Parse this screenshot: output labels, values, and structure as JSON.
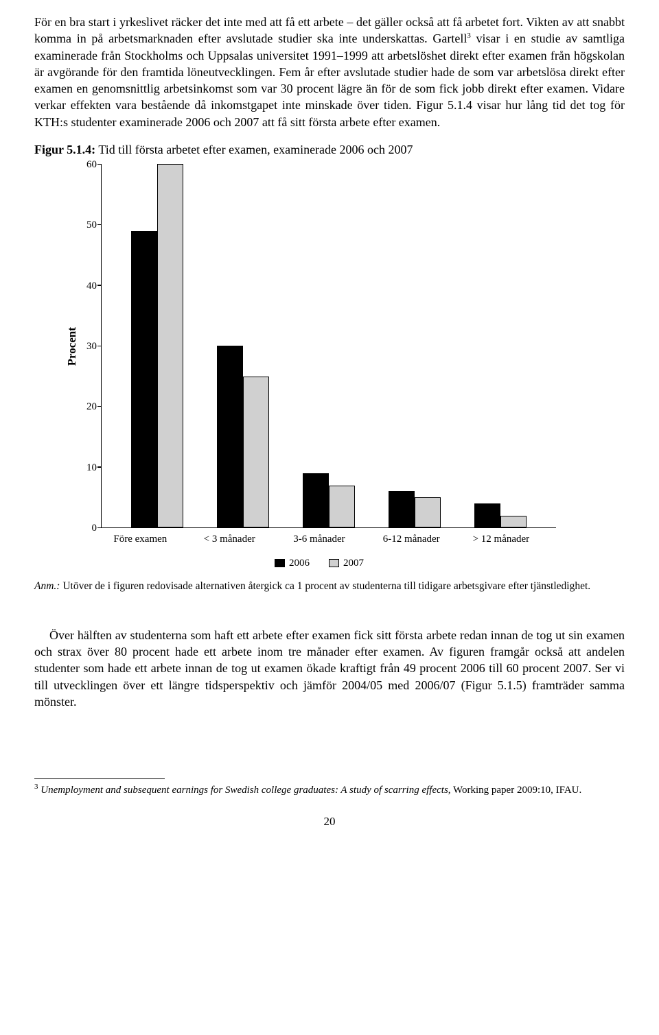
{
  "paragraph1": "För en bra start i yrkeslivet räcker det inte med att få ett arbete – det gäller också att få arbetet fort. Vikten av att snabbt komma in på arbetsmarknaden efter avslutade studier ska inte underskattas. Gartell",
  "paragraph1_after_ref": " visar i en studie av samtliga examinerade från Stockholms och Uppsalas universitet 1991–1999 att arbetslöshet direkt efter examen från högskolan är avgörande för den framtida löneutvecklingen. Fem år efter avslutade studier hade de som var arbetslösa direkt efter examen en genomsnittlig arbetsinkomst som var 30 procent lägre än för de som fick jobb direkt efter examen. Vidare verkar effekten vara bestående då inkomstgapet inte minskade över tiden. Figur 5.1.4 visar hur lång tid det tog för KTH:s studenter examinerade 2006 och 2007 att få sitt första arbete efter examen.",
  "ref_mark": "3",
  "figure": {
    "label": "Figur 5.1.4:",
    "caption_rest": " Tid till första arbetet efter examen, examinerade 2006 och 2007",
    "y_axis_label": "Procent",
    "y_max": 60,
    "y_ticks": [
      0,
      10,
      20,
      30,
      40,
      50,
      60
    ],
    "categories": [
      "Före examen",
      "< 3 månader",
      "3-6 månader",
      "6-12 månader",
      "> 12 månader"
    ],
    "series": [
      {
        "name": "2006",
        "values": [
          49,
          30,
          9,
          6,
          4
        ]
      },
      {
        "name": "2007",
        "values": [
          60,
          25,
          7,
          5,
          2
        ]
      }
    ],
    "colors": {
      "series_a": "#000000",
      "series_b": "#d0d0d0",
      "border": "#000000"
    }
  },
  "note_label": "Anm.:",
  "note_text": " Utöver de i figuren redovisade alternativen återgick ca 1 procent av studenterna till tidigare arbetsgivare efter tjänstledighet.",
  "paragraph2": "Över hälften av studenterna som haft ett arbete efter examen fick sitt första arbete redan innan de tog ut sin examen och strax över 80 procent hade ett arbete inom tre månader efter examen. Av figuren framgår också att andelen studenter som hade ett arbete innan de tog ut examen ökade kraftigt från 49 procent 2006 till 60 procent 2007. Ser vi till utvecklingen över ett längre tidsperspektiv och jämför 2004/05 med 2006/07 (Figur 5.1.5) framträder samma mönster.",
  "footnote": {
    "num": "3",
    "title": "Unemployment and subsequent earnings for Swedish college graduates: A study of scarring effects",
    "rest": ", Working paper 2009:10, IFAU."
  },
  "page_number": "20"
}
